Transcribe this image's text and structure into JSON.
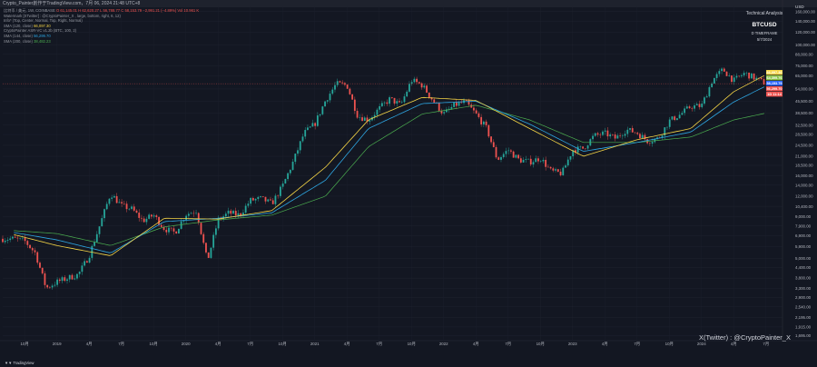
{
  "topbar": {
    "text": "Crypto_Painter創作于TradingView.com，7月 06, 2024 21:48 UTC+8"
  },
  "legend": {
    "line1_prefix": "比特币 / 美元, 1W, COINBASE",
    "line1_values": "O 61,145.01  H 62,620.27  L 56,788.77  C 58,153.79  −2,991.21 (−4.89%)  Vol 10.961 K",
    "line2": "Watermark [XTwitter] : @CryptoPainter_X , large, bottom, right, 6, 12)",
    "line3": "Info* (Top, Center, Normal, Top, Right, Normal)",
    "sma120_label": "SMA (120, close)",
    "sma120_value": "66,097.30",
    "asr_label": "CryptoPainter ASR-VC v1.2b (BTC, 100, 2)",
    "sma144_label": "SMA (144, close)",
    "sma144_value": "56,299.70",
    "sma200_label": "SMA (200, close)",
    "sma200_value": "38,482.23"
  },
  "info_box": {
    "title": "Technical Analysis",
    "symbol": "BTCUSD",
    "timeframe": "D TIMEFRAME",
    "date": "5/7/2024"
  },
  "watermark": "X(Twitter) : @CryptoPainter_X",
  "tv_logo": "TradingView",
  "colors": {
    "background": "#131722",
    "up": "#26a69a",
    "down": "#ef5350",
    "sma120": "#f5d546",
    "asr": "#8bc34a",
    "sma144": "#2ea6e2",
    "sma200": "#4caf50"
  },
  "chart_data": {
    "type": "candlestick",
    "y_axis": {
      "scale": "log",
      "currency": "USD",
      "tick_labels": [
        "160,000.00",
        "140,000.00",
        "120,000.00",
        "100,000.00",
        "88,000.00",
        "75,000.00",
        "65,000.00",
        "54,000.00",
        "45,500.00",
        "38,500.00",
        "32,500.00",
        "28,500.00",
        "24,500.00",
        "21,000.00",
        "18,500.00",
        "16,000.00",
        "14,000.00",
        "12,000.00",
        "10,400.00",
        "9,000.00",
        "7,900.00",
        "6,900.00",
        "5,900.00",
        "5,000.00",
        "4,400.00",
        "3,800.00",
        "3,300.00",
        "2,900.00",
        "2,540.00",
        "2,195.00",
        "1,915.00",
        "1,695.00"
      ]
    },
    "x_axis": {
      "tick_labels": [
        "10月",
        "2019",
        "4月",
        "7月",
        "10月",
        "2020",
        "4月",
        "7月",
        "10月",
        "2021",
        "4月",
        "7月",
        "10月",
        "2022",
        "4月",
        "7月",
        "10月",
        "2023",
        "4月",
        "7月",
        "10月",
        "2024",
        "4月",
        "7月"
      ]
    },
    "price_labels": [
      {
        "value": "66,097.30",
        "color": "#f5d546"
      },
      {
        "value": "64,399.76",
        "color": "#8bc34a"
      },
      {
        "value": "58,153.79",
        "color": "#2962ff"
      },
      {
        "value": "56,299.70",
        "color": "#ef5350"
      },
      {
        "value": "1D 11:14",
        "color": "#ef5350"
      }
    ],
    "price_path": [
      [
        "2018-09",
        6600
      ],
      [
        "2018-10",
        6400
      ],
      [
        "2018-11",
        5400
      ],
      [
        "2018-12",
        3300
      ],
      [
        "2019-01",
        3600
      ],
      [
        "2019-02",
        3800
      ],
      [
        "2019-03",
        4000
      ],
      [
        "2019-04",
        5200
      ],
      [
        "2019-05",
        8000
      ],
      [
        "2019-06",
        12500
      ],
      [
        "2019-07",
        10500
      ],
      [
        "2019-08",
        10000
      ],
      [
        "2019-09",
        8500
      ],
      [
        "2019-10",
        9200
      ],
      [
        "2019-11",
        7600
      ],
      [
        "2019-12",
        7200
      ],
      [
        "2020-01",
        9300
      ],
      [
        "2020-02",
        9800
      ],
      [
        "2020-03",
        4800
      ],
      [
        "2020-04",
        8600
      ],
      [
        "2020-05",
        9500
      ],
      [
        "2020-06",
        9200
      ],
      [
        "2020-07",
        11300
      ],
      [
        "2020-08",
        11600
      ],
      [
        "2020-09",
        10800
      ],
      [
        "2020-10",
        13800
      ],
      [
        "2020-11",
        19500
      ],
      [
        "2020-12",
        29000
      ],
      [
        "2021-01",
        33000
      ],
      [
        "2021-02",
        46000
      ],
      [
        "2021-03",
        58000
      ],
      [
        "2021-04",
        57000
      ],
      [
        "2021-05",
        37000
      ],
      [
        "2021-06",
        35000
      ],
      [
        "2021-07",
        41000
      ],
      [
        "2021-08",
        47000
      ],
      [
        "2021-09",
        43000
      ],
      [
        "2021-10",
        61000
      ],
      [
        "2021-11",
        57000
      ],
      [
        "2021-12",
        46000
      ],
      [
        "2022-01",
        38000
      ],
      [
        "2022-02",
        43000
      ],
      [
        "2022-03",
        45000
      ],
      [
        "2022-04",
        38000
      ],
      [
        "2022-05",
        31000
      ],
      [
        "2022-06",
        20000
      ],
      [
        "2022-07",
        23000
      ],
      [
        "2022-08",
        20000
      ],
      [
        "2022-09",
        19400
      ],
      [
        "2022-10",
        20500
      ],
      [
        "2022-11",
        17000
      ],
      [
        "2022-12",
        16500
      ],
      [
        "2023-01",
        23000
      ],
      [
        "2023-02",
        23500
      ],
      [
        "2023-03",
        28000
      ],
      [
        "2023-04",
        29000
      ],
      [
        "2023-05",
        27000
      ],
      [
        "2023-06",
        30500
      ],
      [
        "2023-07",
        29200
      ],
      [
        "2023-08",
        26000
      ],
      [
        "2023-09",
        27000
      ],
      [
        "2023-10",
        34500
      ],
      [
        "2023-11",
        37700
      ],
      [
        "2023-12",
        42300
      ],
      [
        "2024-01",
        42500
      ],
      [
        "2024-02",
        61000
      ],
      [
        "2024-03",
        71000
      ],
      [
        "2024-04",
        60600
      ],
      [
        "2024-05",
        67500
      ],
      [
        "2024-06",
        62700
      ],
      [
        "2024-07",
        58150
      ]
    ],
    "sma120_path": [
      [
        "2018-09",
        7000
      ],
      [
        "2019-01",
        6000
      ],
      [
        "2019-06",
        5200
      ],
      [
        "2019-11",
        8800
      ],
      [
        "2020-04",
        8700
      ],
      [
        "2020-09",
        9800
      ],
      [
        "2021-02",
        18000
      ],
      [
        "2021-06",
        35000
      ],
      [
        "2021-11",
        48000
      ],
      [
        "2022-04",
        46000
      ],
      [
        "2022-09",
        31000
      ],
      [
        "2023-02",
        21000
      ],
      [
        "2023-07",
        26500
      ],
      [
        "2023-12",
        31000
      ],
      [
        "2024-04",
        52000
      ],
      [
        "2024-07",
        66000
      ]
    ],
    "sma144_path": [
      [
        "2018-09",
        7200
      ],
      [
        "2019-01",
        6500
      ],
      [
        "2019-06",
        5400
      ],
      [
        "2019-11",
        8400
      ],
      [
        "2020-04",
        8800
      ],
      [
        "2020-09",
        9500
      ],
      [
        "2021-02",
        15000
      ],
      [
        "2021-06",
        31000
      ],
      [
        "2021-11",
        44000
      ],
      [
        "2022-04",
        45500
      ],
      [
        "2022-09",
        33000
      ],
      [
        "2023-02",
        22500
      ],
      [
        "2023-07",
        25500
      ],
      [
        "2023-12",
        29500
      ],
      [
        "2024-04",
        45000
      ],
      [
        "2024-07",
        56300
      ]
    ],
    "sma200_path": [
      [
        "2018-09",
        7400
      ],
      [
        "2019-01",
        7100
      ],
      [
        "2019-06",
        6000
      ],
      [
        "2019-11",
        7800
      ],
      [
        "2020-04",
        8600
      ],
      [
        "2020-09",
        9200
      ],
      [
        "2021-02",
        12000
      ],
      [
        "2021-06",
        24000
      ],
      [
        "2021-11",
        38000
      ],
      [
        "2022-04",
        43000
      ],
      [
        "2022-09",
        35000
      ],
      [
        "2023-02",
        25500
      ],
      [
        "2023-07",
        25500
      ],
      [
        "2023-12",
        27500
      ],
      [
        "2024-04",
        35000
      ],
      [
        "2024-07",
        38500
      ]
    ]
  }
}
